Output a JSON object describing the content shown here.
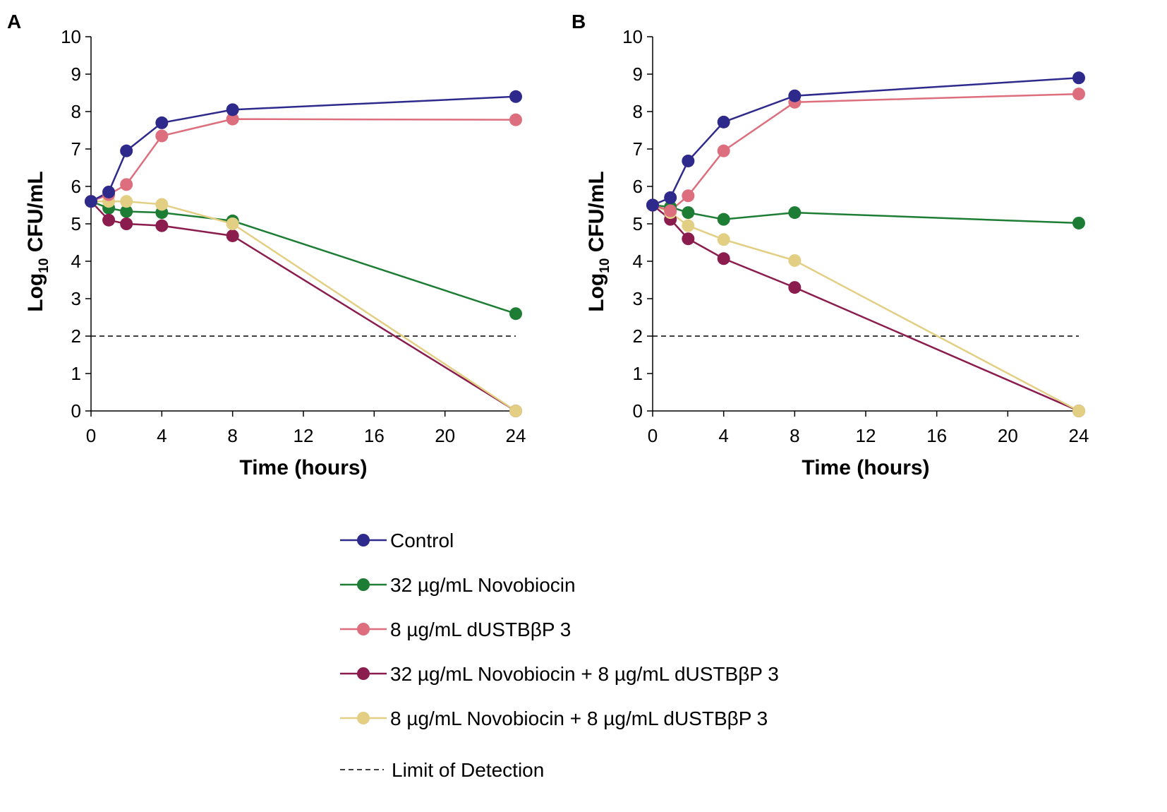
{
  "figure": {
    "panels": [
      "A",
      "B"
    ]
  },
  "chart_data": [
    {
      "panel": "A",
      "type": "line",
      "title": "",
      "xlabel": "Time (hours)",
      "ylabel_main": "Log",
      "ylabel_sub": "10",
      "ylabel_rest": " CFU/mL",
      "xlim": [
        0,
        24
      ],
      "ylim": [
        0,
        10
      ],
      "xticks": [
        0,
        4,
        8,
        12,
        16,
        20,
        24
      ],
      "yticks": [
        0,
        1,
        2,
        3,
        4,
        5,
        6,
        7,
        8,
        9,
        10
      ],
      "grid": false,
      "x": [
        0,
        1,
        2,
        4,
        8,
        24
      ],
      "series": [
        {
          "name": "Control",
          "color": "#2e2a8c",
          "values": [
            5.6,
            5.85,
            6.95,
            7.7,
            8.05,
            8.4
          ]
        },
        {
          "name": "8 µg/mL dUSTBβP 3",
          "color": "#dc6e7d",
          "values": [
            5.6,
            5.78,
            6.05,
            7.35,
            7.8,
            7.78
          ]
        },
        {
          "name": "32 µg/mL Novobiocin",
          "color": "#1e7d35",
          "values": [
            5.6,
            5.42,
            5.33,
            5.3,
            5.08,
            2.6
          ]
        },
        {
          "name": "32 µg/mL Novobiocin + 8 µg/mL dUSTBβP 3",
          "color": "#8b1c4e",
          "values": [
            5.6,
            5.1,
            5.0,
            4.95,
            4.68,
            0
          ]
        },
        {
          "name": "8 µg/mL Novobiocin + 8 µg/mL dUSTBβP 3",
          "color": "#e3cf83",
          "values": [
            5.6,
            5.6,
            5.6,
            5.52,
            5.0,
            0
          ]
        }
      ],
      "limit_of_detection": 2
    },
    {
      "panel": "B",
      "type": "line",
      "title": "",
      "xlabel": "Time (hours)",
      "ylabel_main": "Log",
      "ylabel_sub": "10",
      "ylabel_rest": " CFU/mL",
      "xlim": [
        0,
        24
      ],
      "ylim": [
        0,
        10
      ],
      "xticks": [
        0,
        4,
        8,
        12,
        16,
        20,
        24
      ],
      "yticks": [
        0,
        1,
        2,
        3,
        4,
        5,
        6,
        7,
        8,
        9,
        10
      ],
      "grid": false,
      "x": [
        0,
        1,
        2,
        4,
        8,
        24
      ],
      "series": [
        {
          "name": "Control",
          "color": "#2e2a8c",
          "values": [
            5.5,
            5.7,
            6.68,
            7.72,
            8.42,
            8.9
          ]
        },
        {
          "name": "8 µg/mL dUSTBβP 3",
          "color": "#dc6e7d",
          "values": [
            5.5,
            5.35,
            5.75,
            6.95,
            8.25,
            8.47
          ]
        },
        {
          "name": "32 µg/mL Novobiocin",
          "color": "#1e7d35",
          "values": [
            5.5,
            5.45,
            5.3,
            5.12,
            5.3,
            5.02
          ]
        },
        {
          "name": "32 µg/mL Novobiocin + 8 µg/mL dUSTBβP 3",
          "color": "#8b1c4e",
          "values": [
            5.5,
            5.12,
            4.6,
            4.07,
            3.3,
            0
          ]
        },
        {
          "name": "8 µg/mL Novobiocin + 8 µg/mL dUSTBβP 3",
          "color": "#e3cf83",
          "values": [
            5.5,
            5.3,
            4.95,
            4.58,
            4.02,
            0
          ]
        }
      ],
      "limit_of_detection": 2
    }
  ],
  "legend": {
    "entries": [
      {
        "label": "Control",
        "color": "#2e2a8c",
        "style": "line-marker"
      },
      {
        "label": "32 µg/mL Novobiocin",
        "color": "#1e7d35",
        "style": "line-marker"
      },
      {
        "label": "8 µg/mL dUSTBβP 3",
        "color": "#dc6e7d",
        "style": "line-marker"
      },
      {
        "label": "32 µg/mL Novobiocin + 8 µg/mL dUSTBβP 3",
        "color": "#8b1c4e",
        "style": "line-marker"
      },
      {
        "label": "8 µg/mL Novobiocin + 8 µg/mL dUSTBβP 3",
        "color": "#e3cf83",
        "style": "line-marker"
      },
      {
        "label": "Limit of Detection",
        "color": "#000000",
        "style": "dashed"
      }
    ]
  }
}
